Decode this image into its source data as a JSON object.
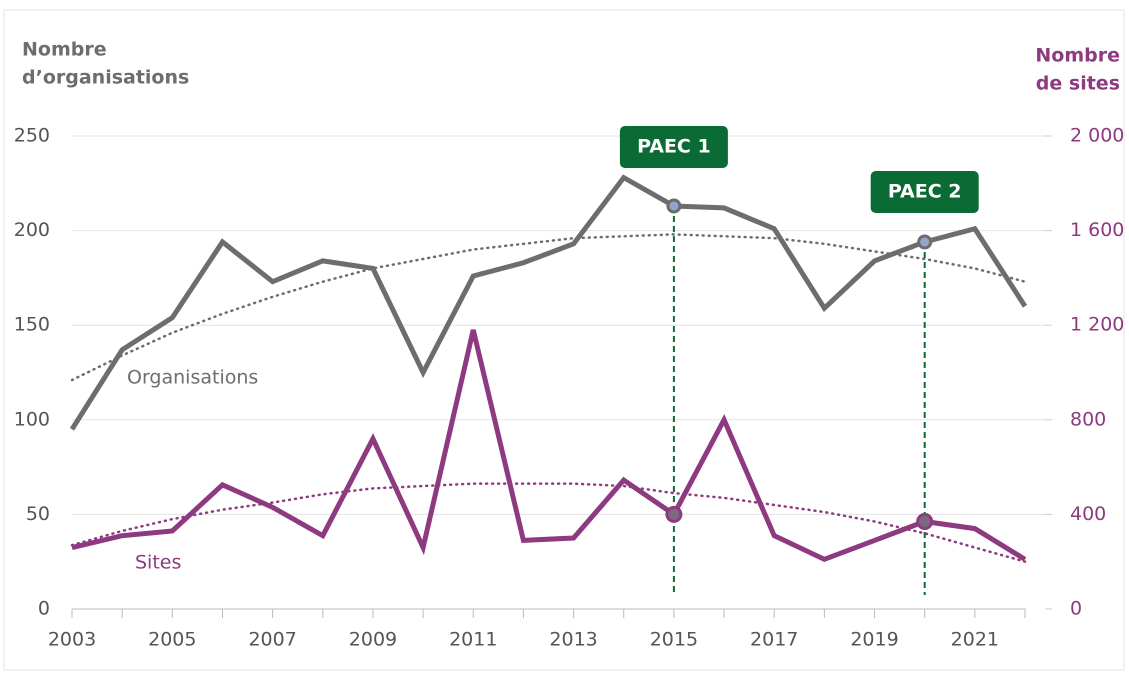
{
  "chart_data": {
    "type": "line",
    "ylabel": [
      "Nombre",
      "d’organisations"
    ],
    "y2label": [
      "Nombre",
      "de sites"
    ],
    "x": [
      2003,
      2004,
      2005,
      2006,
      2007,
      2008,
      2009,
      2010,
      2011,
      2012,
      2013,
      2014,
      2015,
      2016,
      2017,
      2018,
      2019,
      2020,
      2021,
      2022
    ],
    "xlim": [
      2003,
      2022
    ],
    "xticks": [
      2003,
      2005,
      2007,
      2009,
      2011,
      2013,
      2015,
      2017,
      2019,
      2021
    ],
    "ylim": [
      0,
      250
    ],
    "yticks": [
      0,
      50,
      100,
      150,
      200,
      250
    ],
    "y2lim": [
      0,
      2000
    ],
    "y2ticks": [
      0,
      400,
      800,
      {
        "value": 1200,
        "label": "1 200"
      },
      {
        "value": 1600,
        "label": "1 600"
      },
      {
        "value": 2000,
        "label": "2 000"
      }
    ],
    "grid": true,
    "series": [
      {
        "name": "Organisations",
        "color": "#6d6d6d",
        "axis": "y",
        "values": [
          95,
          137,
          154,
          194,
          173,
          184,
          180,
          125,
          176,
          183,
          193,
          228,
          213,
          212,
          201,
          159,
          184,
          194,
          201,
          160
        ],
        "trend": [
          121,
          134,
          146,
          156,
          165,
          173,
          180,
          185,
          190,
          193,
          196,
          197,
          198,
          197,
          196,
          193,
          189,
          185,
          180,
          173
        ]
      },
      {
        "name": "Sites",
        "color": "#8e3a80",
        "axis": "y2",
        "values": [
          260,
          310,
          330,
          525,
          430,
          310,
          720,
          260,
          1180,
          290,
          300,
          545,
          400,
          800,
          310,
          210,
          290,
          370,
          340,
          210
        ],
        "trend": [
          270,
          330,
          380,
          420,
          450,
          485,
          510,
          520,
          530,
          530,
          530,
          520,
          490,
          470,
          440,
          410,
          370,
          320,
          260,
          200
        ]
      }
    ],
    "annotations": [
      {
        "text": "PAEC 1",
        "x": 2015
      },
      {
        "text": "PAEC 2",
        "x": 2020
      }
    ]
  }
}
